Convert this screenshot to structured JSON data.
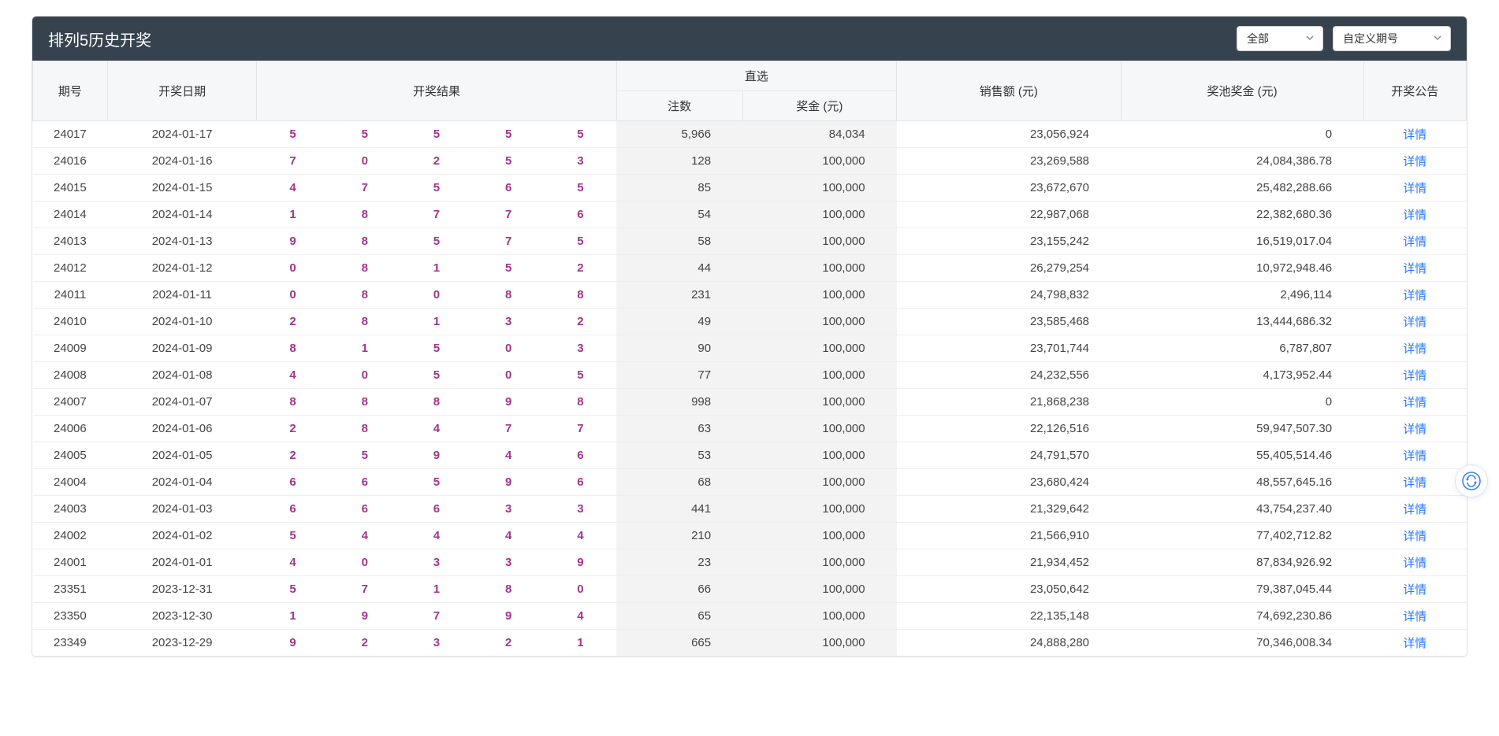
{
  "header": {
    "title": "排列5历史开奖",
    "filter_all": "全部",
    "filter_custom": "自定义期号"
  },
  "columns": {
    "issue": "期号",
    "date": "开奖日期",
    "result": "开奖结果",
    "direct_group": "直选",
    "count": "注数",
    "prize": "奖金 (元)",
    "sales": "销售额 (元)",
    "pool": "奖池奖金 (元)",
    "announce": "开奖公告",
    "detail_label": "详情"
  },
  "rows": [
    {
      "issue": "24017",
      "date": "2024-01-17",
      "balls": [
        "5",
        "5",
        "5",
        "5",
        "5"
      ],
      "count": "5,966",
      "prize": "84,034",
      "sales": "23,056,924",
      "pool": "0"
    },
    {
      "issue": "24016",
      "date": "2024-01-16",
      "balls": [
        "7",
        "0",
        "2",
        "5",
        "3"
      ],
      "count": "128",
      "prize": "100,000",
      "sales": "23,269,588",
      "pool": "24,084,386.78"
    },
    {
      "issue": "24015",
      "date": "2024-01-15",
      "balls": [
        "4",
        "7",
        "5",
        "6",
        "5"
      ],
      "count": "85",
      "prize": "100,000",
      "sales": "23,672,670",
      "pool": "25,482,288.66"
    },
    {
      "issue": "24014",
      "date": "2024-01-14",
      "balls": [
        "1",
        "8",
        "7",
        "7",
        "6"
      ],
      "count": "54",
      "prize": "100,000",
      "sales": "22,987,068",
      "pool": "22,382,680.36"
    },
    {
      "issue": "24013",
      "date": "2024-01-13",
      "balls": [
        "9",
        "8",
        "5",
        "7",
        "5"
      ],
      "count": "58",
      "prize": "100,000",
      "sales": "23,155,242",
      "pool": "16,519,017.04"
    },
    {
      "issue": "24012",
      "date": "2024-01-12",
      "balls": [
        "0",
        "8",
        "1",
        "5",
        "2"
      ],
      "count": "44",
      "prize": "100,000",
      "sales": "26,279,254",
      "pool": "10,972,948.46"
    },
    {
      "issue": "24011",
      "date": "2024-01-11",
      "balls": [
        "0",
        "8",
        "0",
        "8",
        "8"
      ],
      "count": "231",
      "prize": "100,000",
      "sales": "24,798,832",
      "pool": "2,496,114"
    },
    {
      "issue": "24010",
      "date": "2024-01-10",
      "balls": [
        "2",
        "8",
        "1",
        "3",
        "2"
      ],
      "count": "49",
      "prize": "100,000",
      "sales": "23,585,468",
      "pool": "13,444,686.32"
    },
    {
      "issue": "24009",
      "date": "2024-01-09",
      "balls": [
        "8",
        "1",
        "5",
        "0",
        "3"
      ],
      "count": "90",
      "prize": "100,000",
      "sales": "23,701,744",
      "pool": "6,787,807"
    },
    {
      "issue": "24008",
      "date": "2024-01-08",
      "balls": [
        "4",
        "0",
        "5",
        "0",
        "5"
      ],
      "count": "77",
      "prize": "100,000",
      "sales": "24,232,556",
      "pool": "4,173,952.44"
    },
    {
      "issue": "24007",
      "date": "2024-01-07",
      "balls": [
        "8",
        "8",
        "8",
        "9",
        "8"
      ],
      "count": "998",
      "prize": "100,000",
      "sales": "21,868,238",
      "pool": "0"
    },
    {
      "issue": "24006",
      "date": "2024-01-06",
      "balls": [
        "2",
        "8",
        "4",
        "7",
        "7"
      ],
      "count": "63",
      "prize": "100,000",
      "sales": "22,126,516",
      "pool": "59,947,507.30"
    },
    {
      "issue": "24005",
      "date": "2024-01-05",
      "balls": [
        "2",
        "5",
        "9",
        "4",
        "6"
      ],
      "count": "53",
      "prize": "100,000",
      "sales": "24,791,570",
      "pool": "55,405,514.46"
    },
    {
      "issue": "24004",
      "date": "2024-01-04",
      "balls": [
        "6",
        "6",
        "5",
        "9",
        "6"
      ],
      "count": "68",
      "prize": "100,000",
      "sales": "23,680,424",
      "pool": "48,557,645.16"
    },
    {
      "issue": "24003",
      "date": "2024-01-03",
      "balls": [
        "6",
        "6",
        "6",
        "3",
        "3"
      ],
      "count": "441",
      "prize": "100,000",
      "sales": "21,329,642",
      "pool": "43,754,237.40"
    },
    {
      "issue": "24002",
      "date": "2024-01-02",
      "balls": [
        "5",
        "4",
        "4",
        "4",
        "4"
      ],
      "count": "210",
      "prize": "100,000",
      "sales": "21,566,910",
      "pool": "77,402,712.82"
    },
    {
      "issue": "24001",
      "date": "2024-01-01",
      "balls": [
        "4",
        "0",
        "3",
        "3",
        "9"
      ],
      "count": "23",
      "prize": "100,000",
      "sales": "21,934,452",
      "pool": "87,834,926.92"
    },
    {
      "issue": "23351",
      "date": "2023-12-31",
      "balls": [
        "5",
        "7",
        "1",
        "8",
        "0"
      ],
      "count": "66",
      "prize": "100,000",
      "sales": "23,050,642",
      "pool": "79,387,045.44"
    },
    {
      "issue": "23350",
      "date": "2023-12-30",
      "balls": [
        "1",
        "9",
        "7",
        "9",
        "4"
      ],
      "count": "65",
      "prize": "100,000",
      "sales": "22,135,148",
      "pool": "74,692,230.86"
    },
    {
      "issue": "23349",
      "date": "2023-12-29",
      "balls": [
        "9",
        "2",
        "3",
        "2",
        "1"
      ],
      "count": "665",
      "prize": "100,000",
      "sales": "24,888,280",
      "pool": "70,346,008.34"
    }
  ],
  "style": {
    "ball_color": "#a2338e",
    "link_color": "#2878ff",
    "header_bg": "#37424f",
    "thead_bg": "#f6f7f8",
    "grey_cell_bg": "#f3f3f3",
    "border_color": "#e5e5e5"
  }
}
